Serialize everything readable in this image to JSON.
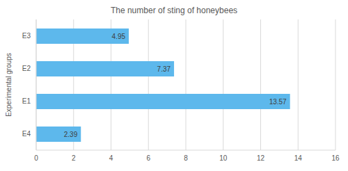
{
  "chart_data": {
    "type": "bar",
    "orientation": "horizontal",
    "title": "The number of sting of honeybees",
    "ylabel": "Experimental groups",
    "categories": [
      "E3",
      "E2",
      "E1",
      "E4"
    ],
    "values": [
      4.95,
      7.37,
      13.57,
      2.39
    ],
    "color": "#5db8ec",
    "xlim": [
      0,
      16
    ],
    "xticks": [
      0,
      2,
      4,
      6,
      8,
      10,
      12,
      14,
      16
    ],
    "grid": true,
    "data_labels": true
  }
}
